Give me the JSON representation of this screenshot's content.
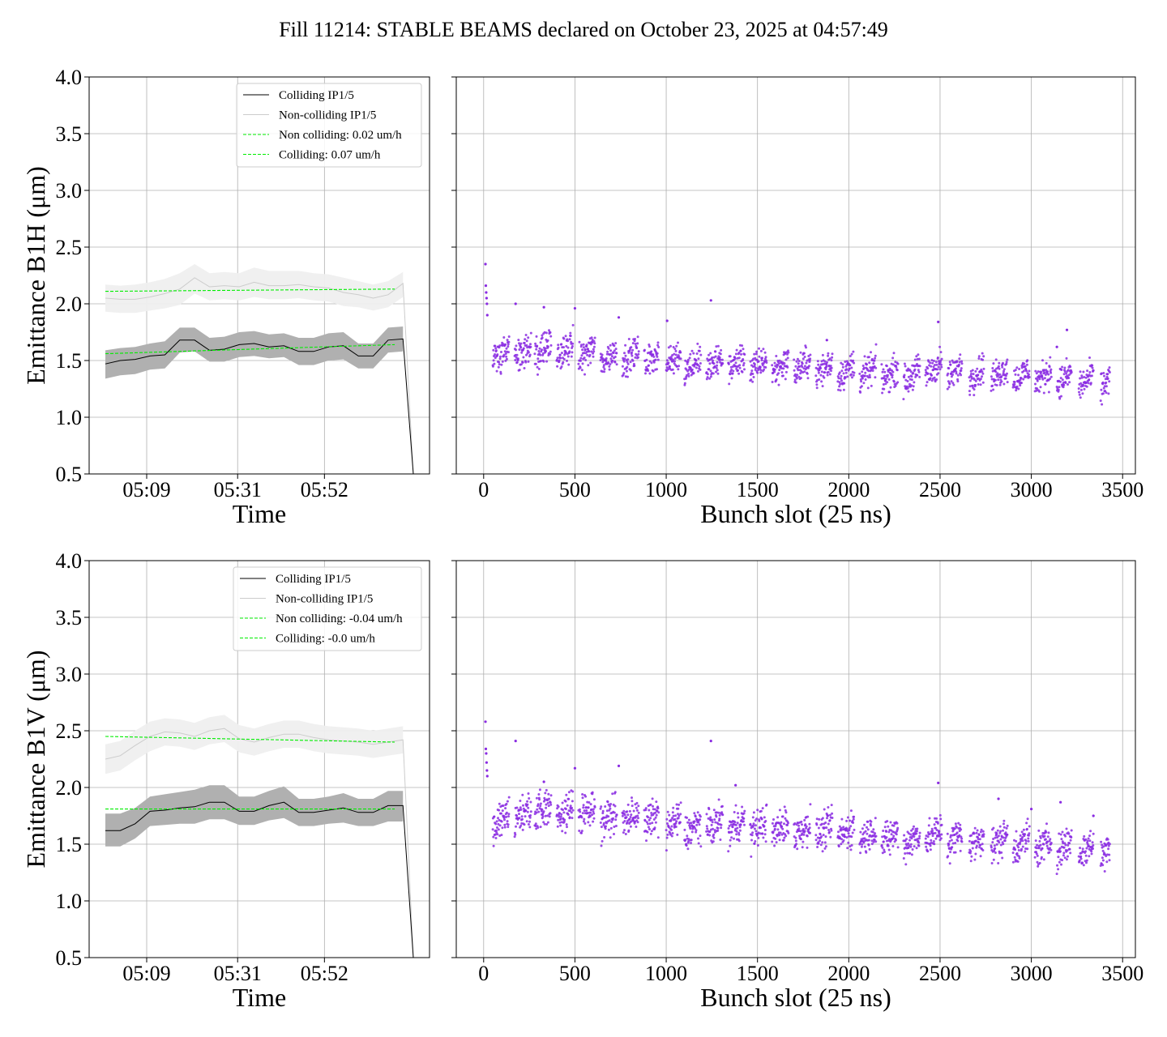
{
  "figure": {
    "title": "Fill 11214: STABLE BEAMS declared on October 23, 2025 at 04:57:49"
  },
  "colors": {
    "colliding_line": "#000000",
    "colliding_band": "#b0b0b0",
    "noncolliding_line": "#cccccc",
    "noncolliding_band": "#efefef",
    "fit_line": "#00ee00",
    "bunch_points": "#8a2be2",
    "grid": "#b0b0b0"
  },
  "chart_data": [
    {
      "type": "line",
      "panel": "top-left",
      "xlabel": "Time",
      "ylabel": "Emittance B1H (μm)",
      "ylim": [
        0.5,
        4.0
      ],
      "yticks": [
        "0.5",
        "1.0",
        "1.5",
        "2.0",
        "2.5",
        "3.0",
        "3.5",
        "4.0"
      ],
      "xticks": [
        "05:09",
        "05:31",
        "05:52"
      ],
      "grid": true,
      "legend_position": "top-right",
      "legend": [
        "Colliding IP1/5",
        "Non-colliding IP1/5",
        "Non colliding: 0.02 um/h",
        "Colliding: 0.07 um/h"
      ],
      "time_range_min": [
        0,
        74.5
      ],
      "tick_minutes": [
        10,
        32,
        53
      ],
      "series": [
        {
          "name": "Colliding IP1/5",
          "time_min": [
            0,
            3.6,
            7.2,
            10.8,
            14.4,
            18,
            21.6,
            25.2,
            28.8,
            32.4,
            36,
            39.6,
            43.2,
            46.8,
            50.4,
            54,
            57.6,
            61.2,
            64.8,
            68.4,
            72,
            74.5
          ],
          "values": [
            1.47,
            1.5,
            1.51,
            1.54,
            1.55,
            1.68,
            1.68,
            1.59,
            1.6,
            1.64,
            1.65,
            1.62,
            1.63,
            1.58,
            1.58,
            1.62,
            1.63,
            1.54,
            1.54,
            1.68,
            1.69,
            0.5
          ],
          "band_low": [
            1.34,
            1.37,
            1.38,
            1.42,
            1.43,
            1.57,
            1.58,
            1.49,
            1.49,
            1.53,
            1.54,
            1.52,
            1.53,
            1.46,
            1.46,
            1.5,
            1.51,
            1.43,
            1.43,
            1.57,
            1.58
          ],
          "band_high": [
            1.59,
            1.61,
            1.62,
            1.65,
            1.67,
            1.79,
            1.79,
            1.7,
            1.71,
            1.75,
            1.76,
            1.73,
            1.74,
            1.7,
            1.7,
            1.74,
            1.75,
            1.65,
            1.65,
            1.79,
            1.8
          ]
        },
        {
          "name": "Non-colliding IP1/5",
          "time_min": [
            0,
            3.6,
            7.2,
            10.8,
            14.4,
            18,
            21.6,
            25.2,
            28.8,
            32.4,
            36,
            39.6,
            43.2,
            46.8,
            50.4,
            54,
            57.6,
            61.2,
            64.8,
            68.4,
            72,
            74.5
          ],
          "values": [
            2.05,
            2.04,
            2.04,
            2.06,
            2.09,
            2.13,
            2.23,
            2.15,
            2.16,
            2.15,
            2.19,
            2.16,
            2.16,
            2.17,
            2.15,
            2.14,
            2.1,
            2.08,
            2.05,
            2.08,
            2.18,
            0.5
          ],
          "band_low": [
            1.93,
            1.92,
            1.92,
            1.94,
            1.96,
            1.99,
            2.09,
            2.03,
            2.04,
            2.03,
            2.06,
            2.04,
            2.04,
            2.05,
            2.03,
            2.02,
            1.98,
            1.97,
            1.94,
            1.97,
            2.06
          ],
          "band_high": [
            2.17,
            2.16,
            2.17,
            2.19,
            2.22,
            2.27,
            2.35,
            2.27,
            2.28,
            2.27,
            2.32,
            2.29,
            2.29,
            2.29,
            2.27,
            2.26,
            2.23,
            2.2,
            2.17,
            2.2,
            2.28
          ]
        }
      ],
      "fits": [
        {
          "name": "Non colliding: 0.02 um/h",
          "time_min": [
            0,
            70
          ],
          "values": [
            2.11,
            2.13
          ]
        },
        {
          "name": "Colliding: 0.07 um/h",
          "time_min": [
            0,
            70
          ],
          "values": [
            1.56,
            1.64
          ]
        }
      ]
    },
    {
      "type": "scatter",
      "panel": "top-right",
      "xlabel": "Bunch slot (25 ns)",
      "ylabel": "",
      "xlim": [
        -150,
        3570
      ],
      "ylim": [
        0.5,
        4.0
      ],
      "xticks": [
        "0",
        "500",
        "1000",
        "1500",
        "2000",
        "2500",
        "3000",
        "3500"
      ],
      "grid": true,
      "trains_start": [
        50,
        170,
        280,
        400,
        520,
        640,
        760,
        880,
        1000,
        1100,
        1220,
        1340,
        1460,
        1580,
        1700,
        1820,
        1940,
        2060,
        2180,
        2300,
        2420,
        2540,
        2660,
        2780,
        2900,
        3020,
        3140,
        3260,
        3380
      ],
      "trains_end": [
        140,
        260,
        370,
        490,
        610,
        730,
        850,
        960,
        1080,
        1190,
        1310,
        1430,
        1550,
        1670,
        1790,
        1910,
        2030,
        2150,
        2270,
        2390,
        2510,
        2620,
        2740,
        2870,
        2990,
        3110,
        3220,
        3340,
        3430
      ],
      "trains_mean": [
        1.55,
        1.57,
        1.6,
        1.58,
        1.57,
        1.53,
        1.54,
        1.52,
        1.51,
        1.47,
        1.47,
        1.48,
        1.46,
        1.45,
        1.45,
        1.43,
        1.41,
        1.4,
        1.38,
        1.37,
        1.43,
        1.4,
        1.39,
        1.39,
        1.37,
        1.36,
        1.34,
        1.32,
        1.3
      ],
      "trains_spread": 0.24,
      "first_bunches": {
        "x": [
          10,
          12,
          14,
          16,
          18,
          20
        ],
        "values": [
          2.35,
          2.16,
          2.1,
          2.05,
          2.0,
          1.9
        ]
      },
      "outliers": {
        "x": [
          175,
          330,
          500,
          740,
          1005,
          1245,
          1880,
          2490,
          3140,
          3195
        ],
        "values": [
          2.0,
          1.97,
          1.96,
          1.88,
          1.85,
          2.03,
          1.68,
          1.84,
          1.62,
          1.77
        ]
      }
    },
    {
      "type": "line",
      "panel": "bottom-left",
      "xlabel": "Time",
      "ylabel": "Emittance B1V (μm)",
      "ylim": [
        0.5,
        4.0
      ],
      "yticks": [
        "0.5",
        "1.0",
        "1.5",
        "2.0",
        "2.5",
        "3.0",
        "3.5",
        "4.0"
      ],
      "xticks": [
        "05:09",
        "05:31",
        "05:52"
      ],
      "grid": true,
      "legend_position": "top-right",
      "legend": [
        "Colliding IP1/5",
        "Non-colliding IP1/5",
        "Non colliding: -0.04 um/h",
        "Colliding: -0.0 um/h"
      ],
      "time_range_min": [
        0,
        74.5
      ],
      "tick_minutes": [
        10,
        32,
        53
      ],
      "series": [
        {
          "name": "Colliding IP1/5",
          "time_min": [
            0,
            3.6,
            7.2,
            10.8,
            14.4,
            18,
            21.6,
            25.2,
            28.8,
            32.4,
            36,
            39.6,
            43.2,
            46.8,
            50.4,
            54,
            57.6,
            61.2,
            64.8,
            68.4,
            72,
            74.5
          ],
          "values": [
            1.62,
            1.62,
            1.68,
            1.79,
            1.8,
            1.82,
            1.83,
            1.87,
            1.87,
            1.79,
            1.79,
            1.84,
            1.87,
            1.78,
            1.78,
            1.8,
            1.82,
            1.78,
            1.78,
            1.84,
            1.84,
            0.5
          ],
          "band_low": [
            1.48,
            1.48,
            1.55,
            1.66,
            1.67,
            1.68,
            1.68,
            1.72,
            1.72,
            1.67,
            1.67,
            1.71,
            1.73,
            1.66,
            1.66,
            1.68,
            1.69,
            1.66,
            1.66,
            1.7,
            1.7
          ],
          "band_high": [
            1.77,
            1.77,
            1.82,
            1.92,
            1.94,
            1.96,
            1.98,
            2.02,
            2.02,
            1.92,
            1.92,
            1.97,
            2.01,
            1.9,
            1.9,
            1.92,
            1.95,
            1.9,
            1.9,
            1.97,
            1.97
          ]
        },
        {
          "name": "Non-colliding IP1/5",
          "time_min": [
            0,
            3.6,
            7.2,
            10.8,
            14.4,
            18,
            21.6,
            25.2,
            28.8,
            32.4,
            36,
            39.6,
            43.2,
            46.8,
            50.4,
            54,
            57.6,
            61.2,
            64.8,
            68.4,
            72,
            74.5
          ],
          "values": [
            2.25,
            2.28,
            2.37,
            2.45,
            2.49,
            2.48,
            2.45,
            2.5,
            2.52,
            2.43,
            2.4,
            2.44,
            2.47,
            2.47,
            2.44,
            2.42,
            2.41,
            2.4,
            2.38,
            2.4,
            2.42,
            0.5
          ],
          "band_low": [
            2.12,
            2.15,
            2.24,
            2.32,
            2.37,
            2.36,
            2.33,
            2.38,
            2.4,
            2.31,
            2.28,
            2.32,
            2.35,
            2.35,
            2.32,
            2.3,
            2.29,
            2.28,
            2.26,
            2.28,
            2.3
          ],
          "band_high": [
            2.38,
            2.41,
            2.5,
            2.58,
            2.61,
            2.6,
            2.57,
            2.62,
            2.64,
            2.55,
            2.52,
            2.56,
            2.59,
            2.59,
            2.56,
            2.54,
            2.53,
            2.52,
            2.5,
            2.52,
            2.54
          ]
        }
      ],
      "fits": [
        {
          "name": "Non colliding: -0.04 um/h",
          "time_min": [
            0,
            70
          ],
          "values": [
            2.45,
            2.4
          ]
        },
        {
          "name": "Colliding: -0.0 um/h",
          "time_min": [
            0,
            70
          ],
          "values": [
            1.81,
            1.81
          ]
        }
      ]
    },
    {
      "type": "scatter",
      "panel": "bottom-right",
      "xlabel": "Bunch slot (25 ns)",
      "ylabel": "",
      "xlim": [
        -150,
        3570
      ],
      "ylim": [
        0.5,
        4.0
      ],
      "xticks": [
        "0",
        "500",
        "1000",
        "1500",
        "2000",
        "2500",
        "3000",
        "3500"
      ],
      "grid": true,
      "trains_start": [
        50,
        170,
        280,
        400,
        520,
        640,
        760,
        880,
        1000,
        1100,
        1220,
        1340,
        1460,
        1580,
        1700,
        1820,
        1940,
        2060,
        2180,
        2300,
        2420,
        2540,
        2660,
        2780,
        2900,
        3020,
        3140,
        3260,
        3380
      ],
      "trains_end": [
        140,
        260,
        370,
        490,
        610,
        730,
        850,
        960,
        1080,
        1190,
        1310,
        1430,
        1550,
        1670,
        1790,
        1910,
        2030,
        2150,
        2270,
        2390,
        2510,
        2620,
        2740,
        2870,
        2990,
        3110,
        3220,
        3340,
        3430
      ],
      "trains_mean": [
        1.7,
        1.75,
        1.8,
        1.78,
        1.8,
        1.74,
        1.74,
        1.72,
        1.68,
        1.64,
        1.67,
        1.67,
        1.65,
        1.64,
        1.63,
        1.62,
        1.61,
        1.59,
        1.56,
        1.54,
        1.58,
        1.55,
        1.53,
        1.53,
        1.51,
        1.49,
        1.48,
        1.46,
        1.44
      ],
      "trains_spread": 0.28,
      "first_bunches": {
        "x": [
          10,
          12,
          14,
          16,
          18,
          20
        ],
        "values": [
          2.58,
          2.34,
          2.3,
          2.22,
          2.15,
          2.1
        ]
      },
      "outliers": {
        "x": [
          175,
          330,
          500,
          740,
          1245,
          1380,
          2490,
          2820,
          3000,
          3160,
          3340
        ],
        "values": [
          2.41,
          2.05,
          2.17,
          2.19,
          2.41,
          2.02,
          2.04,
          1.9,
          1.81,
          1.87,
          1.75
        ]
      }
    }
  ]
}
